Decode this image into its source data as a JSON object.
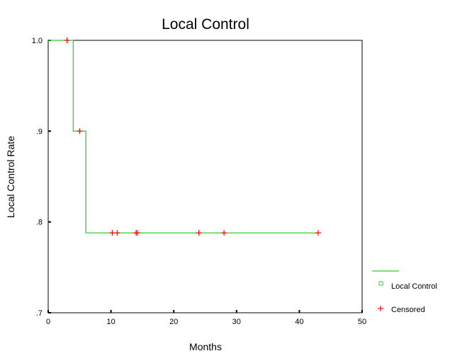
{
  "chart_data": {
    "type": "line",
    "title": "Local Control",
    "xlabel": "Months",
    "ylabel": "Local Control Rate",
    "xlim": [
      0,
      50
    ],
    "ylim": [
      0.7,
      1.0
    ],
    "x_ticks": [
      0,
      10,
      20,
      30,
      40,
      50
    ],
    "x_tick_labels": [
      "0",
      "10",
      "20",
      "30",
      "40",
      "50"
    ],
    "y_ticks": [
      0.7,
      0.8,
      0.9,
      1.0
    ],
    "y_tick_labels": [
      ".7",
      ".8",
      ".9",
      "1.0"
    ],
    "grid": false,
    "legend_position": "right",
    "series": [
      {
        "name": "Local Control",
        "style": "step",
        "color": "#33cc33",
        "points": [
          [
            0,
            1.0
          ],
          [
            4,
            1.0
          ],
          [
            4,
            0.9
          ],
          [
            6,
            0.9
          ],
          [
            6,
            0.788
          ],
          [
            43,
            0.788
          ]
        ]
      },
      {
        "name": "Censored",
        "style": "marker",
        "marker": "+",
        "color": "#ff0000",
        "points": [
          [
            3,
            1.0
          ],
          [
            5,
            0.9
          ],
          [
            10.2,
            0.788
          ],
          [
            11,
            0.788
          ],
          [
            14,
            0.788
          ],
          [
            14.2,
            0.788
          ],
          [
            24,
            0.788
          ],
          [
            28,
            0.788
          ],
          [
            43,
            0.788
          ]
        ]
      }
    ]
  }
}
